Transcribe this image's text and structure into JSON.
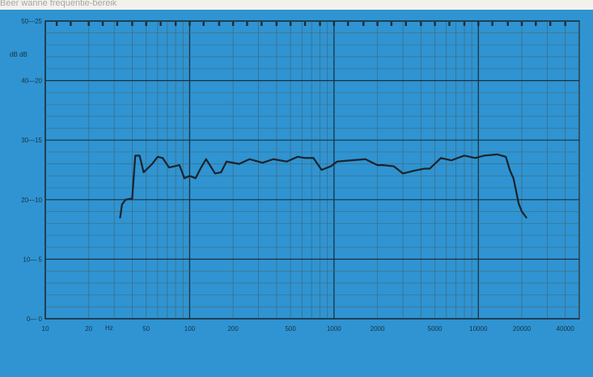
{
  "caption": "Beer wanne frequentie-bereik",
  "chart_data": {
    "type": "line",
    "xscale": "log",
    "xlim": [
      10,
      50000
    ],
    "ylim": [
      0,
      25
    ],
    "grid": true,
    "units": {
      "x": "Hz",
      "y": "dB dB"
    },
    "x_ticks": [
      {
        "value": 10,
        "label": "10"
      },
      {
        "value": 20,
        "label": "20"
      },
      {
        "value": 50,
        "label": "50"
      },
      {
        "value": 100,
        "label": "100"
      },
      {
        "value": 200,
        "label": "200"
      },
      {
        "value": 500,
        "label": "500"
      },
      {
        "value": 1000,
        "label": "1000"
      },
      {
        "value": 2000,
        "label": "2000"
      },
      {
        "value": 5000,
        "label": "5000"
      },
      {
        "value": 10000,
        "label": "10000"
      },
      {
        "value": 20000,
        "label": "20000"
      },
      {
        "value": 40000,
        "label": "40000"
      }
    ],
    "y_ticks": [
      {
        "value": 0,
        "label": "0— 0"
      },
      {
        "value": 5,
        "label": "10— 5"
      },
      {
        "value": 10,
        "label": "20—10"
      },
      {
        "value": 15,
        "label": "30—15"
      },
      {
        "value": 20,
        "label": "40—20"
      },
      {
        "value": 25,
        "label": "50—25"
      }
    ],
    "series": [
      {
        "x": [
          33,
          34,
          36,
          40,
          42,
          45,
          48,
          55,
          60,
          65,
          72,
          85,
          92,
          100,
          110,
          120,
          130,
          150,
          165,
          180,
          220,
          260,
          320,
          380,
          470,
          560,
          630,
          720,
          820,
          950,
          1050,
          1300,
          1650,
          2000,
          2200,
          2600,
          3000,
          3500,
          4200,
          4600,
          5500,
          6500,
          7200,
          8000,
          9500,
          11000,
          13500,
          15500,
          16500,
          17500,
          18000,
          19000,
          20000,
          21500
        ],
        "y": [
          8.5,
          9.6,
          10.0,
          10.1,
          13.7,
          13.7,
          12.3,
          13.0,
          13.6,
          13.5,
          12.7,
          12.9,
          11.8,
          12.0,
          11.8,
          12.7,
          13.4,
          12.2,
          12.3,
          13.2,
          13.0,
          13.4,
          13.1,
          13.4,
          13.2,
          13.6,
          13.5,
          13.5,
          12.5,
          12.8,
          13.2,
          13.3,
          13.4,
          12.9,
          12.9,
          12.8,
          12.2,
          12.4,
          12.6,
          12.6,
          13.5,
          13.3,
          13.5,
          13.7,
          13.5,
          13.7,
          13.8,
          13.6,
          12.5,
          11.8,
          11.1,
          9.7,
          9.0,
          8.5
        ]
      }
    ]
  }
}
